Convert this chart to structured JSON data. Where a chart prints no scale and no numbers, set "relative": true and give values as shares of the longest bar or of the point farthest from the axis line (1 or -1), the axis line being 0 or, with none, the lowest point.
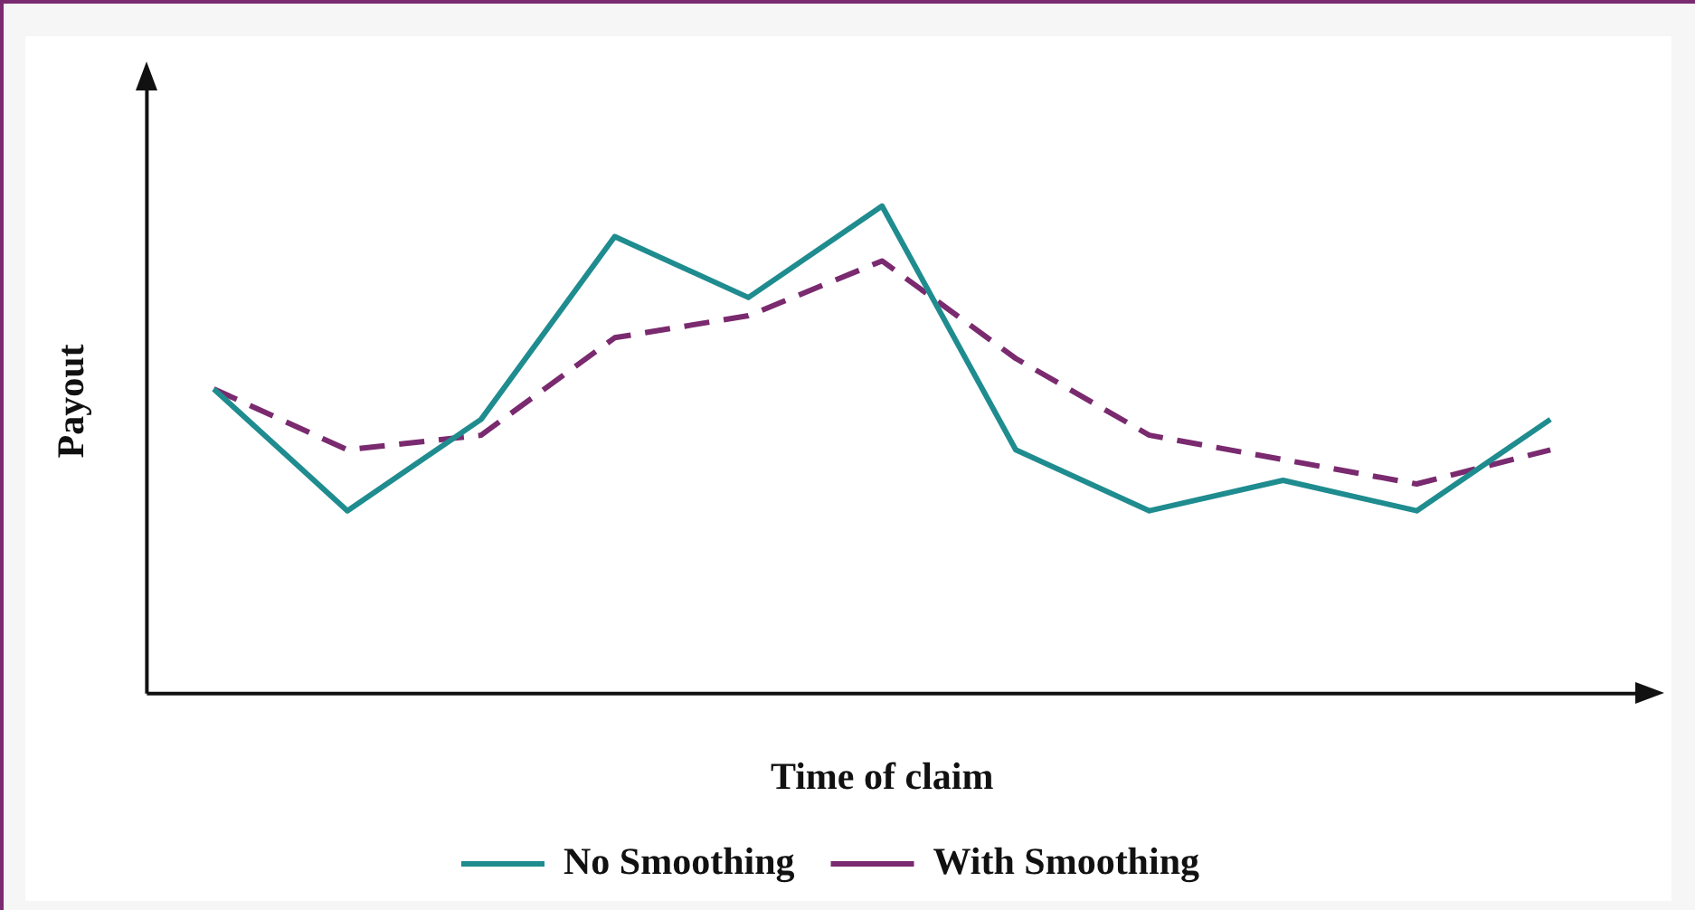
{
  "chart_data": {
    "type": "line",
    "relative": true,
    "xlabel": "Time of claim",
    "ylabel": "Payout",
    "categories": [
      null,
      null,
      null,
      null,
      null,
      null,
      null,
      null,
      null,
      null,
      null
    ],
    "series": [
      {
        "name": "No Smoothing",
        "color": "#1f8c8f",
        "line_style": "solid",
        "values": [
          0.625,
          0.375,
          0.5625,
          0.9375,
          0.8125,
          1,
          0.5,
          0.375,
          0.4375,
          0.375,
          0.5625
        ]
      },
      {
        "name": "With Smoothing",
        "color": "#7a2a6f",
        "line_style": "dashed",
        "values": [
          0.625,
          0.5,
          0.53,
          0.73,
          0.775,
          0.8875,
          0.6875,
          0.53,
          0.48,
          0.43,
          0.5
        ]
      }
    ],
    "grid": false,
    "legend": "bottom",
    "marker": "none"
  }
}
